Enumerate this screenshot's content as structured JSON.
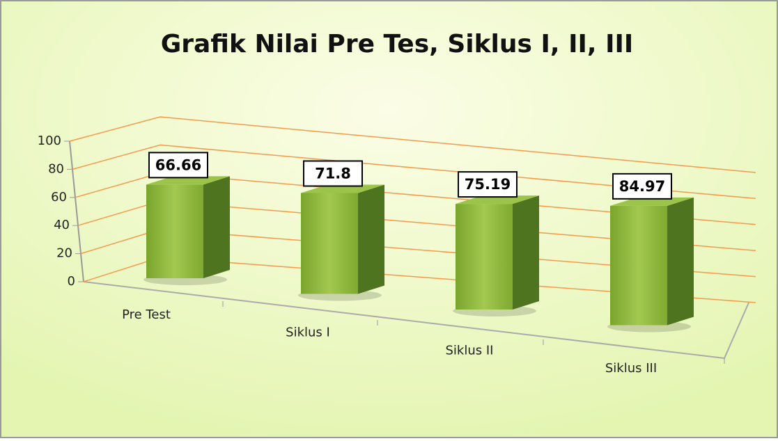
{
  "chart_data": {
    "type": "bar",
    "title": "Grafik Nilai Pre Tes, Siklus I, II, III",
    "categories": [
      "Pre Test",
      "Siklus I",
      "Siklus II",
      "Siklus III"
    ],
    "values": [
      66.66,
      71.8,
      75.19,
      84.97
    ],
    "color": "#8db43c",
    "ylim": [
      0,
      100
    ],
    "yticks": [
      0,
      20,
      40,
      60,
      80,
      100
    ],
    "grid": true
  }
}
